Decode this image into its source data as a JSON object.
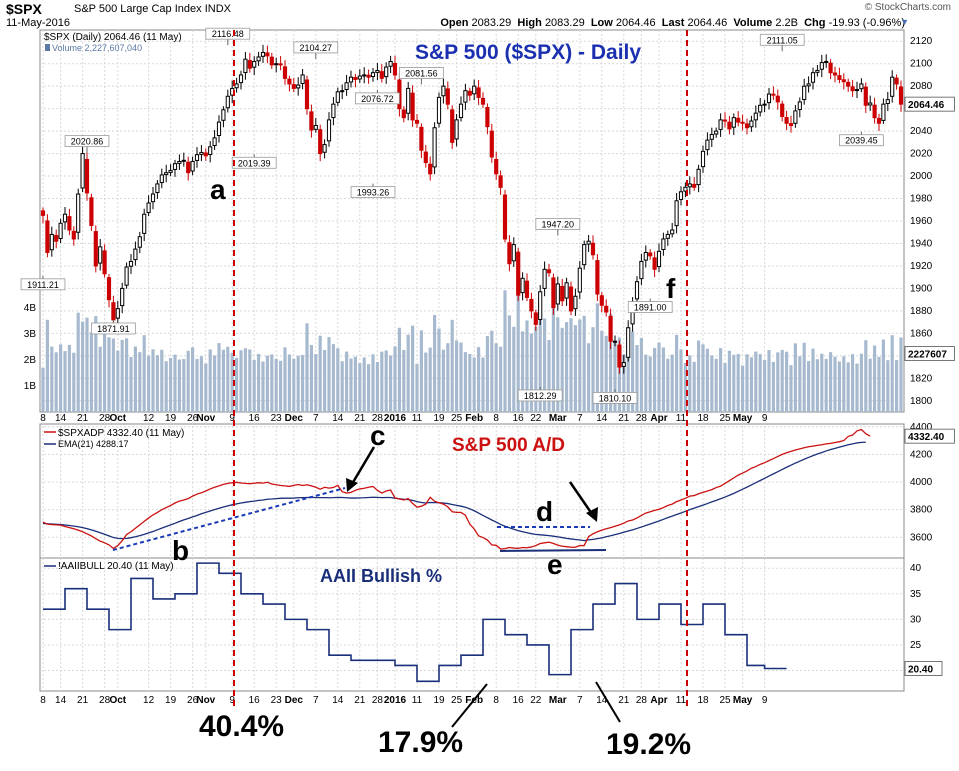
{
  "header": {
    "symbol": "$SPX",
    "name": "S&P 500 Large Cap Index",
    "exchange": "INDX",
    "date": "11-May-2016",
    "copyright": "© StockCharts.com",
    "open_label": "Open",
    "open": "2083.29",
    "high_label": "High",
    "high": "2083.29",
    "low_label": "Low",
    "low": "2064.46",
    "last_label": "Last",
    "last": "2064.46",
    "volume_label": "Volume",
    "volume": "2.2B",
    "chg_label": "Chg",
    "chg": "-19.93 (-0.96%)"
  },
  "colors": {
    "up": "#000000",
    "down": "#cc0000",
    "volume": "#a6b9cf",
    "ad_line": "#cc1111",
    "ema": "#1a2f7a",
    "bull": "#1a2f7a",
    "title_blue": "#1a30b0",
    "title_red": "#cc1111",
    "event": "#cc0000"
  },
  "chart_data": [
    {
      "type": "candlestick",
      "legend": "$SPX (Daily) 2064.46 (11 May)",
      "volume_legend": "Volume 2,227,607,040",
      "title": "S&P 500 ($SPX) - Daily",
      "ylim": [
        1790,
        2130
      ],
      "yticks": [
        1800,
        1820,
        1840,
        1860,
        1880,
        1900,
        1920,
        1940,
        1960,
        1980,
        2000,
        2020,
        2040,
        2060,
        2080,
        2100,
        2120
      ],
      "last_price_label": "2064.46",
      "volume_last_label": "2227607",
      "volume_ticks": [
        "1B",
        "2B",
        "3B",
        "4B"
      ],
      "volume_tick_values": [
        1,
        2,
        3,
        4
      ],
      "volume_ylim": [
        0,
        6.3
      ],
      "closes": [
        1965,
        1932,
        1948,
        1942,
        1958,
        1966,
        1952,
        1944,
        1984,
        2020,
        1985,
        1956,
        1920,
        1937,
        1913,
        1890,
        1872,
        1882,
        1900,
        1919,
        1924,
        1935,
        1946,
        1966,
        1976,
        1984,
        1993,
        2001,
        2003,
        2005,
        2011,
        2013,
        2014,
        2003,
        2013,
        2019,
        2021,
        2018,
        2026,
        2034,
        2048,
        2059,
        2071,
        2078,
        2082,
        2090,
        2104,
        2096,
        2102,
        2106,
        2110,
        2107,
        2099,
        2100,
        2099,
        2087,
        2082,
        2078,
        2081,
        2090,
        2060,
        2041,
        2045,
        2020,
        2028,
        2050,
        2064,
        2075,
        2076,
        2083,
        2088,
        2086,
        2089,
        2090,
        2088,
        2092,
        2094,
        2087,
        2097,
        2102,
        2090,
        2060,
        2052,
        2078,
        2050,
        2047,
        2023,
        2012,
        2002,
        2043,
        2070,
        2080,
        2064,
        2030,
        2050,
        2064,
        2076,
        2072,
        2080,
        2070,
        2064,
        2044,
        2017,
        2002,
        1990,
        1944,
        1922,
        1939,
        1894,
        1909,
        1892,
        1880,
        1868,
        1897,
        1917,
        1914,
        1883,
        1904,
        1889,
        1905,
        1880,
        1893,
        1918,
        1939,
        1942,
        1930,
        1895,
        1885,
        1879,
        1853,
        1853,
        1830,
        1834,
        1865,
        1888,
        1906,
        1924,
        1932,
        1929,
        1917,
        1933,
        1944,
        1948,
        1952,
        1978,
        1986,
        1990,
        1993,
        1990,
        2006,
        2022,
        2032,
        2037,
        2040,
        2050,
        2049,
        2042,
        2052,
        2048,
        2047,
        2043,
        2049,
        2056,
        2063,
        2064,
        2073,
        2072,
        2066,
        2053,
        2047,
        2045,
        2058,
        2066,
        2080,
        2082,
        2092,
        2094,
        2101,
        2102,
        2092,
        2090,
        2086,
        2084,
        2080,
        2076,
        2077,
        2082,
        2063,
        2065,
        2052,
        2047,
        2064,
        2068,
        2088,
        2082,
        2064
      ],
      "callouts": [
        {
          "label": "1911.21",
          "value": 1911.21
        },
        {
          "label": "2020.86",
          "value": 2020.86
        },
        {
          "label": "1871.91",
          "value": 1871.91
        },
        {
          "label": "2116.48",
          "value": 2116.48
        },
        {
          "label": "2019.39",
          "value": 2019.39
        },
        {
          "label": "2104.27",
          "value": 2104.27
        },
        {
          "label": "1993.26",
          "value": 1993.26
        },
        {
          "label": "2076.72",
          "value": 2076.72
        },
        {
          "label": "2081.56",
          "value": 2081.56
        },
        {
          "label": "1812.29",
          "value": 1812.29
        },
        {
          "label": "1947.20",
          "value": 1947.2
        },
        {
          "label": "1810.10",
          "value": 1810.1
        },
        {
          "label": "1891.00",
          "value": 1891.0
        },
        {
          "label": "2111.05",
          "value": 2111.05
        },
        {
          "label": "2039.45",
          "value": 2039.45
        }
      ]
    },
    {
      "type": "line",
      "title": "S&P 500 A/D",
      "series": [
        {
          "name": "$SPXADP 4332.40 (11 May)",
          "values": [
            3710,
            3695,
            3692,
            3690,
            3688,
            3678,
            3670,
            3662,
            3652,
            3640,
            3625,
            3610,
            3590,
            3572,
            3560,
            3545,
            3520,
            3540,
            3575,
            3620,
            3640,
            3665,
            3690,
            3715,
            3740,
            3762,
            3780,
            3800,
            3815,
            3830,
            3848,
            3862,
            3870,
            3880,
            3898,
            3912,
            3922,
            3935,
            3950,
            3962,
            3972,
            3983,
            3990,
            3995,
            3998,
            3993,
            3990,
            3988,
            3991,
            3995,
            3992,
            3998,
            3986,
            3980,
            3975,
            3972,
            3968,
            3976,
            3982,
            3975,
            3980,
            3972,
            3962,
            3948,
            3962,
            3956,
            3960,
            3976,
            3930,
            3920,
            3925,
            3940,
            3950,
            3955,
            3962,
            3968,
            3940,
            3920,
            3935,
            3942,
            3885,
            3877,
            3870,
            3880,
            3845,
            3818,
            3825,
            3840,
            3890,
            3860,
            3850,
            3840,
            3820,
            3785,
            3780,
            3780,
            3760,
            3695,
            3660,
            3610,
            3598,
            3580,
            3545,
            3542,
            3515,
            3518,
            3526,
            3522,
            3520,
            3526,
            3524,
            3530,
            3540,
            3555,
            3560,
            3565,
            3555,
            3543,
            3535,
            3532,
            3528,
            3528,
            3540,
            3540,
            3605,
            3625,
            3640,
            3652,
            3662,
            3670,
            3680,
            3690,
            3702,
            3718,
            3725,
            3740,
            3758,
            3775,
            3785,
            3795,
            3803,
            3815,
            3830,
            3840,
            3858,
            3870,
            3882,
            3898,
            3902,
            3915,
            3925,
            3935,
            3945,
            3960,
            3970,
            3990,
            4010,
            4030,
            4050,
            4065,
            4080,
            4100,
            4112,
            4128,
            4140,
            4155,
            4170,
            4185,
            4200,
            4212,
            4222,
            4232,
            4240,
            4248,
            4255,
            4260,
            4265,
            4270,
            4276,
            4280,
            4286,
            4292,
            4300,
            4330,
            4340,
            4370,
            4380,
            4350,
            4332
          ]
        },
        {
          "name": "EMA(21) 4288.17",
          "values": [
            3700,
            3698,
            3696,
            3694,
            3692,
            3689,
            3685,
            3681,
            3676,
            3670,
            3663,
            3654,
            3644,
            3633,
            3622,
            3610,
            3598,
            3592,
            3590,
            3592,
            3597,
            3604,
            3612,
            3621,
            3632,
            3642,
            3654,
            3666,
            3678,
            3690,
            3701,
            3714,
            3726,
            3736,
            3748,
            3758,
            3770,
            3780,
            3790,
            3800,
            3810,
            3819,
            3827,
            3835,
            3842,
            3848,
            3853,
            3858,
            3862,
            3867,
            3870,
            3875,
            3877,
            3880,
            3882,
            3883,
            3883,
            3884,
            3886,
            3887,
            3888,
            3889,
            3888,
            3887,
            3887,
            3886,
            3887,
            3889,
            3888,
            3886,
            3884,
            3884,
            3885,
            3886,
            3888,
            3890,
            3889,
            3887,
            3888,
            3888,
            3883,
            3879,
            3875,
            3873,
            3867,
            3858,
            3852,
            3848,
            3852,
            3851,
            3850,
            3848,
            3844,
            3837,
            3831,
            3825,
            3817,
            3806,
            3792,
            3775,
            3758,
            3742,
            3725,
            3710,
            3693,
            3680,
            3669,
            3658,
            3648,
            3640,
            3633,
            3626,
            3621,
            3618,
            3615,
            3612,
            3608,
            3603,
            3598,
            3592,
            3588,
            3584,
            3580,
            3576,
            3581,
            3585,
            3590,
            3596,
            3604,
            3611,
            3619,
            3627,
            3636,
            3645,
            3654,
            3664,
            3674,
            3685,
            3696,
            3707,
            3718,
            3730,
            3742,
            3753,
            3765,
            3776,
            3788,
            3800,
            3811,
            3822,
            3833,
            3844,
            3856,
            3867,
            3879,
            3891,
            3904,
            3918,
            3933,
            3948,
            3963,
            3979,
            3995,
            4011,
            4027,
            4043,
            4059,
            4075,
            4091,
            4107,
            4122,
            4137,
            4151,
            4165,
            4178,
            4191,
            4203,
            4214,
            4225,
            4235,
            4244,
            4253,
            4261,
            4270,
            4276,
            4283,
            4287,
            4288
          ]
        }
      ],
      "ylim": [
        3450,
        4420
      ],
      "yticks": [
        3600,
        3800,
        4000,
        4200,
        4400
      ],
      "last_label": "4332.40",
      "ema_last_label": "4288"
    },
    {
      "type": "line",
      "title": "AAII Bullish %",
      "series": [
        {
          "name": "!AAIIBULL 20.40 (11 May)",
          "values": [
            32,
            32,
            32,
            32,
            32,
            36,
            36,
            36,
            36,
            36,
            32,
            32,
            32,
            32,
            32,
            28,
            28,
            28,
            28,
            28,
            38,
            38,
            38,
            38,
            38,
            34,
            34,
            34,
            34,
            34,
            35,
            35,
            35,
            35,
            35,
            41,
            41,
            41,
            41,
            41,
            39,
            39,
            39,
            39,
            39,
            35,
            35,
            35,
            35,
            35,
            33,
            33,
            33,
            33,
            33,
            30,
            30,
            30,
            30,
            30,
            28,
            28,
            28,
            28,
            28,
            23,
            23,
            23,
            23,
            23,
            22,
            22,
            22,
            22,
            22,
            22,
            22,
            22,
            22,
            22,
            21,
            21,
            21,
            21,
            21,
            17.9,
            17.9,
            17.9,
            17.9,
            17.9,
            21,
            21,
            21,
            21,
            21,
            23,
            23,
            23,
            23,
            23,
            30,
            30,
            30,
            30,
            30,
            27,
            27,
            27,
            27,
            27,
            25,
            25,
            25,
            25,
            25,
            19.2,
            19.2,
            19.2,
            19.2,
            19.2,
            28,
            28,
            28,
            28,
            28,
            33,
            33,
            33,
            33,
            33,
            37,
            37,
            37,
            37,
            37,
            30,
            30,
            30,
            30,
            30,
            33,
            33,
            33,
            33,
            33,
            29,
            29,
            29,
            29,
            29,
            33,
            33,
            33,
            33,
            33,
            27,
            27,
            27,
            27,
            27,
            21,
            21,
            21,
            21,
            20.4,
            20.4,
            20.4,
            20.4,
            20.4,
            20.4
          ]
        }
      ],
      "ylim": [
        16,
        42
      ],
      "yticks": [
        20,
        25,
        30,
        35,
        40
      ],
      "last_label": "20.40"
    }
  ],
  "x_axis": {
    "tick_labels": [
      "8",
      "14",
      "21",
      "28",
      "Oct",
      "12",
      "19",
      "26",
      "Nov",
      "9",
      "16",
      "23",
      "Dec",
      "7",
      "14",
      "21",
      "28",
      "2016",
      "11",
      "19",
      "25",
      "Feb",
      "8",
      "16",
      "22",
      "Mar",
      "7",
      "14",
      "21",
      "28",
      "Apr",
      "11",
      "18",
      "25",
      "May",
      "9"
    ],
    "tick_days": [
      0,
      4,
      9,
      14,
      17,
      24,
      29,
      34,
      37,
      43,
      48,
      53,
      57,
      62,
      67,
      72,
      76,
      80,
      85,
      90,
      94,
      98,
      103,
      108,
      112,
      117,
      122,
      127,
      132,
      136,
      140,
      145,
      150,
      155,
      159,
      164
    ],
    "major_labels": [
      "Oct",
      "Nov",
      "Dec",
      "2016",
      "Feb",
      "Mar",
      "Apr",
      "May"
    ]
  },
  "annotations": {
    "a": "a",
    "b": "b",
    "c": "c",
    "d": "d",
    "e": "e",
    "f": "f",
    "pct_1": "40.4%",
    "pct_2": "17.9%",
    "pct_3": "19.2%"
  }
}
